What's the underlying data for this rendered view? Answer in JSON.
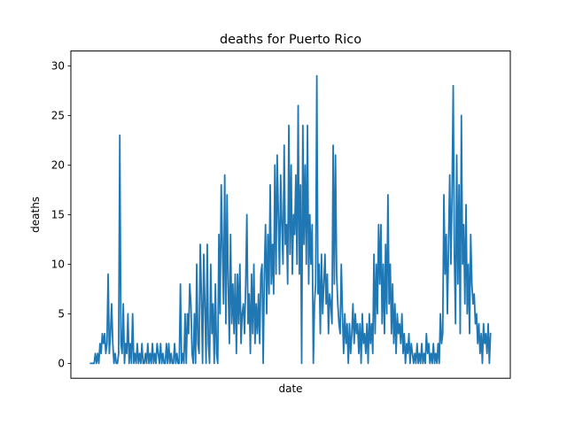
{
  "chart_data": {
    "type": "line",
    "title": "deaths for Puerto Rico",
    "xlabel": "date",
    "ylabel": "deaths",
    "ylim": [
      -1.5,
      31.5
    ],
    "yticks": [
      0,
      5,
      10,
      15,
      20,
      25,
      30
    ],
    "xticks": [],
    "grid": false,
    "series": [
      {
        "color": "#1f77b4",
        "values": [
          0,
          0,
          0,
          0,
          1,
          0,
          1,
          0,
          2,
          1,
          3,
          2,
          3,
          1,
          2,
          9,
          1,
          3,
          6,
          2,
          0,
          1,
          0,
          0,
          1,
          23,
          2,
          1,
          6,
          0,
          2,
          1,
          5,
          0,
          2,
          0,
          5,
          0,
          1,
          0,
          2,
          0,
          1,
          0,
          2,
          0,
          0,
          1,
          0,
          2,
          0,
          1,
          0,
          2,
          0,
          1,
          0,
          2,
          1,
          0,
          2,
          0,
          1,
          0,
          0,
          2,
          0,
          2,
          0,
          1,
          0,
          0,
          2,
          0,
          1,
          0,
          0,
          8,
          0,
          1,
          0,
          5,
          0,
          5,
          3,
          8,
          6,
          1,
          0,
          5,
          0,
          10,
          2,
          1,
          12,
          7,
          0,
          11,
          6,
          0,
          12,
          2,
          0,
          10,
          3,
          6,
          0,
          8,
          1,
          0,
          13,
          5,
          18,
          12,
          6,
          19,
          4,
          17,
          8,
          2,
          13,
          4,
          8,
          3,
          9,
          1,
          9,
          4,
          10,
          2,
          5,
          6,
          3,
          8,
          15,
          4,
          7,
          1,
          9,
          3,
          10,
          2,
          6,
          3,
          7,
          2,
          9,
          10,
          0,
          9,
          14,
          5,
          13,
          7,
          18,
          8,
          12,
          7,
          20,
          9,
          21,
          15,
          9,
          19,
          14,
          10,
          22,
          12,
          14,
          8,
          24,
          11,
          20,
          9,
          15,
          13,
          19,
          10,
          26,
          9,
          18,
          0,
          24,
          12,
          20,
          10,
          24,
          8,
          15,
          10,
          14,
          0,
          6,
          8,
          29,
          7,
          10,
          3,
          11,
          5,
          8,
          11,
          6,
          9,
          3,
          7,
          6,
          4,
          22,
          8,
          21,
          9,
          6,
          4,
          3,
          10,
          5,
          1,
          5,
          2,
          4,
          0,
          4,
          1,
          3,
          6,
          2,
          5,
          3,
          4,
          1,
          4,
          0,
          5,
          2,
          3,
          1,
          4,
          0,
          5,
          2,
          4,
          1,
          11,
          3,
          10,
          5,
          14,
          8,
          14,
          4,
          10,
          3,
          12,
          5,
          17,
          6,
          10,
          3,
          8,
          2,
          6,
          1,
          5,
          3,
          4,
          2,
          5,
          1,
          3,
          0,
          2,
          1,
          3,
          0,
          2,
          1,
          0,
          1,
          0,
          2,
          0,
          1,
          0,
          2,
          0,
          1,
          0,
          3,
          1,
          2,
          0,
          1,
          0,
          2,
          0,
          1,
          0,
          2,
          0,
          5,
          2,
          3,
          17,
          9,
          13,
          5,
          12,
          19,
          10,
          17,
          28,
          11,
          4,
          21,
          8,
          18,
          3,
          25,
          10,
          14,
          6,
          16,
          5,
          10,
          3,
          13,
          8,
          6,
          7,
          4,
          5,
          2,
          4,
          1,
          3,
          0,
          4,
          2,
          3,
          1,
          4,
          0,
          3
        ]
      }
    ]
  }
}
